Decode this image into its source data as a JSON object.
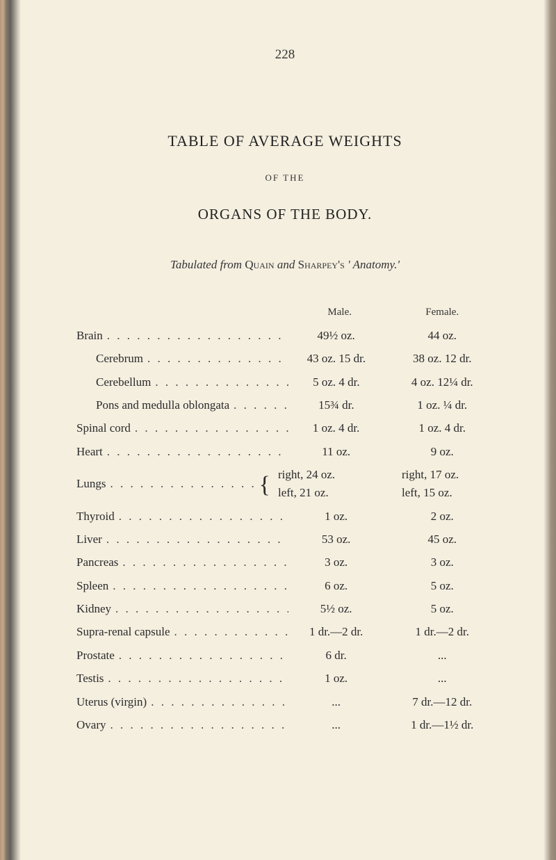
{
  "page_number": "228",
  "title_main": "TABLE OF AVERAGE WEIGHTS",
  "subtitle_small": "OF THE",
  "title_sub": "ORGANS OF THE BODY.",
  "source_prefix": "Tabulated from ",
  "source_author1": "Quain",
  "source_mid": " and ",
  "source_author2": "Sharpey's",
  "source_suffix": " ' Anatomy.'",
  "headers": {
    "male": "Male.",
    "female": "Female."
  },
  "rows": [
    {
      "label": "Brain",
      "indent": false,
      "male": "49½ oz.",
      "female": "44 oz."
    },
    {
      "label": "Cerebrum",
      "indent": true,
      "male": "43 oz. 15 dr.",
      "female": "38 oz. 12 dr."
    },
    {
      "label": "Cerebellum",
      "indent": true,
      "male": "5 oz. 4 dr.",
      "female": "4 oz. 12¼ dr."
    },
    {
      "label": "Pons and medulla oblongata",
      "indent": true,
      "male": "15¾ dr.",
      "female": "1 oz. ¼ dr."
    },
    {
      "label": "Spinal cord",
      "indent": false,
      "male": "1 oz. 4 dr.",
      "female": "1 oz. 4 dr."
    },
    {
      "label": "Heart",
      "indent": false,
      "male": "11 oz.",
      "female": "9 oz."
    }
  ],
  "lungs": {
    "label": "Lungs",
    "right_male": "right, 24 oz.",
    "right_female": "right, 17 oz.",
    "left_male": "left,  21 oz.",
    "left_female": "left, 15 oz."
  },
  "rows2": [
    {
      "label": "Thyroid",
      "indent": false,
      "male": "1 oz.",
      "female": "2 oz."
    },
    {
      "label": "Liver",
      "indent": false,
      "male": "53 oz.",
      "female": "45 oz."
    },
    {
      "label": "Pancreas",
      "indent": false,
      "male": "3 oz.",
      "female": "3 oz."
    },
    {
      "label": "Spleen",
      "indent": false,
      "male": "6 oz.",
      "female": "5 oz."
    },
    {
      "label": "Kidney",
      "indent": false,
      "male": "5½ oz.",
      "female": "5 oz."
    },
    {
      "label": "Supra-renal capsule",
      "indent": false,
      "male": "1 dr.—2 dr.",
      "female": "1 dr.—2 dr."
    },
    {
      "label": "Prostate",
      "indent": false,
      "male": "6 dr.",
      "female": "..."
    },
    {
      "label": "Testis",
      "indent": false,
      "male": "1 oz.",
      "female": "..."
    },
    {
      "label": "Uterus (virgin)",
      "indent": false,
      "male": "...",
      "female": "7 dr.—12 dr."
    },
    {
      "label": "Ovary",
      "indent": false,
      "male": "...",
      "female": "1 dr.—1½ dr."
    }
  ],
  "dots": ". . . . . . . . . . . . . . . . . . . . . . . . . . ."
}
